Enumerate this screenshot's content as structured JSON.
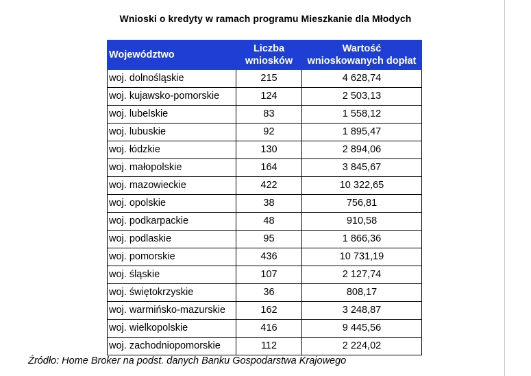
{
  "title": "Wnioski o kredyty w ramach programu Mieszkanie dla Młodych",
  "header_color": "#1f3fd4",
  "columns": {
    "region": "Województwo",
    "count_line1": "Liczba",
    "count_line2": "wniosków",
    "value_line1": "Wartość",
    "value_line2": "wnioskowanych dopłat"
  },
  "rows": [
    {
      "region": "woj. dolnośląskie",
      "count": "215",
      "value": "4 628,74"
    },
    {
      "region": "woj. kujawsko-pomorskie",
      "count": "124",
      "value": "2 503,13"
    },
    {
      "region": "woj. lubelskie",
      "count": "83",
      "value": "1 558,12"
    },
    {
      "region": "woj. lubuskie",
      "count": "92",
      "value": "1 895,47"
    },
    {
      "region": "woj. łódzkie",
      "count": "130",
      "value": "2 894,06"
    },
    {
      "region": "woj. małopolskie",
      "count": "164",
      "value": "3 845,67"
    },
    {
      "region": "woj. mazowieckie",
      "count": "422",
      "value": "10 322,65"
    },
    {
      "region": "woj. opolskie",
      "count": "38",
      "value": "756,81"
    },
    {
      "region": "woj. podkarpackie",
      "count": "48",
      "value": "910,58"
    },
    {
      "region": "woj. podlaskie",
      "count": "95",
      "value": "1 866,36"
    },
    {
      "region": "woj. pomorskie",
      "count": "436",
      "value": "10 731,19"
    },
    {
      "region": "woj. śląskie",
      "count": "107",
      "value": "2 127,74"
    },
    {
      "region": "woj. świętokrzyskie",
      "count": "36",
      "value": "808,17"
    },
    {
      "region": "woj. warmińsko-mazurskie",
      "count": "162",
      "value": "3 248,87"
    },
    {
      "region": "woj. wielkopolskie",
      "count": "416",
      "value": "9 445,56"
    },
    {
      "region": "woj. zachodniopomorskie",
      "count": "112",
      "value": "2 224,02"
    }
  ],
  "source": "Źródło: Home Broker na podst. danych Banku Gospodarstwa Krajowego"
}
